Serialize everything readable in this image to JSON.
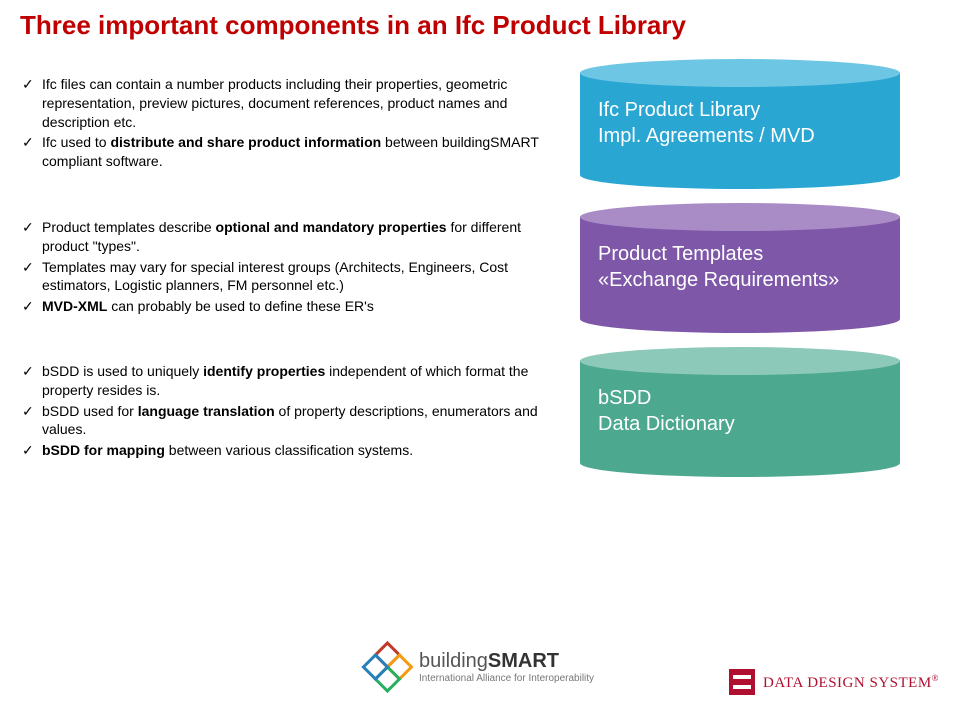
{
  "title": "Three important components in an Ifc Product Library",
  "rows": [
    {
      "bullets": [
        [
          {
            "t": "Ifc files can contain a number products including their properties, geometric representation, preview pictures, document references, product names and description etc.",
            "b": false
          }
        ],
        [
          {
            "t": "Ifc used to ",
            "b": false
          },
          {
            "t": "distribute and share product information",
            "b": true
          },
          {
            "t": " between buildingSMART compliant software.",
            "b": false
          }
        ]
      ],
      "cylinder": {
        "body_color": "#2aa6d3",
        "top_color": "#6cc6e4",
        "line1": "Ifc Product Library",
        "line2": "Impl. Agreements / MVD"
      }
    },
    {
      "bullets": [
        [
          {
            "t": "Product templates describe ",
            "b": false
          },
          {
            "t": "optional and mandatory properties",
            "b": true
          },
          {
            "t": " for different product \"types\".",
            "b": false
          }
        ],
        [
          {
            "t": "Templates may vary for special interest groups (Architects, Engineers, Cost estimators, Logistic planners, FM personnel etc.)",
            "b": false
          }
        ],
        [
          {
            "t": "MVD-XML",
            "b": true
          },
          {
            "t": " can probably be used to define these ER's",
            "b": false
          }
        ]
      ],
      "cylinder": {
        "body_color": "#7e57a9",
        "top_color": "#a98bc6",
        "line1": "Product Templates",
        "line2": "«Exchange Requirements»"
      }
    },
    {
      "bullets": [
        [
          {
            "t": "bSDD is used to uniquely ",
            "b": false
          },
          {
            "t": "identify properties",
            "b": true
          },
          {
            "t": " independent of which format the property resides is.",
            "b": false
          }
        ],
        [
          {
            "t": "bSDD used for ",
            "b": false
          },
          {
            "t": "language translation",
            "b": true
          },
          {
            "t": " of property descriptions, enumerators and values.",
            "b": false
          }
        ],
        [
          {
            "t": "bSDD for mapping",
            "b": true
          },
          {
            "t": " between various classification systems.",
            "b": false
          }
        ]
      ],
      "cylinder": {
        "body_color": "#4da890",
        "top_color": "#8cc9b8",
        "line1": "bSDD",
        "line2": "Data Dictionary"
      }
    }
  ],
  "bsmart_logo": {
    "colors": [
      "#c0392b",
      "#f39c12",
      "#27ae60",
      "#2980b9"
    ],
    "line1_a": "building",
    "line1_b": "SMART",
    "line2": "International Alliance for Interoperability"
  },
  "dds_logo": {
    "bg": "#b01030",
    "text_a": "D",
    "text_b": "ATA ",
    "text_c": "D",
    "text_d": "ESIGN ",
    "text_e": "S",
    "text_f": "YSTEM",
    "reg": "®"
  }
}
